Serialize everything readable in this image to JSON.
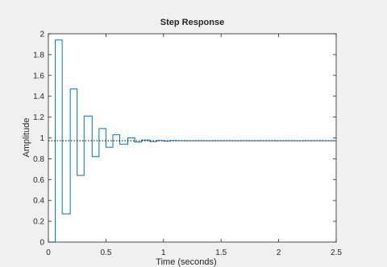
{
  "chart_data": {
    "type": "line",
    "title": "Step Response",
    "xlabel": "Time (seconds)",
    "ylabel": "Amplitude",
    "xlim": [
      0,
      2.5
    ],
    "ylim": [
      0,
      2
    ],
    "xticks": [
      0,
      0.5,
      1,
      1.5,
      2,
      2.5
    ],
    "xtick_labels": [
      "0",
      "0.5",
      "1",
      "1.5",
      "2",
      "2.5"
    ],
    "yticks": [
      0,
      0.2,
      0.4,
      0.6,
      0.8,
      1,
      1.2,
      1.4,
      1.6,
      1.8,
      2
    ],
    "ytick_labels": [
      "0",
      "0.2",
      "0.4",
      "0.6",
      "0.8",
      "1",
      "1.2",
      "1.4",
      "1.6",
      "1.8",
      "2"
    ],
    "grid": false,
    "series": [
      {
        "style": "stairs",
        "color": "#0072bd",
        "x": [
          0,
          0.06,
          0.12,
          0.19,
          0.25,
          0.31,
          0.38,
          0.44,
          0.5,
          0.56,
          0.62,
          0.69,
          0.75,
          0.81,
          0.88,
          0.94,
          1.0,
          1.06,
          1.12,
          2.5
        ],
        "values": [
          0,
          1.94,
          0.27,
          1.47,
          0.64,
          1.21,
          0.82,
          1.09,
          0.91,
          1.03,
          0.94,
          1.0,
          0.96,
          0.98,
          0.965,
          0.975,
          0.97,
          0.975,
          0.973,
          0.973
        ]
      },
      {
        "style": "reference",
        "color": "#000000",
        "dash": "dotted",
        "x": [
          0,
          2.5
        ],
        "values": [
          0.973,
          0.973
        ]
      }
    ]
  }
}
